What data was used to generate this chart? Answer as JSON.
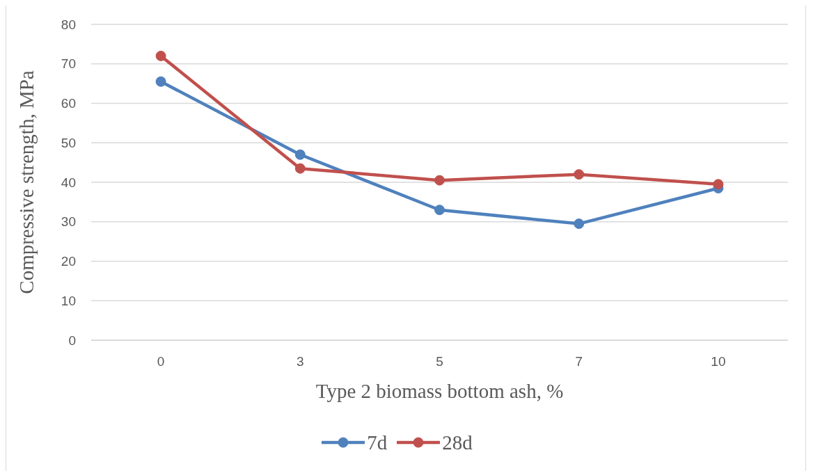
{
  "chart_data": {
    "type": "line",
    "xlabel": "Type 2 biomass bottom ash, %",
    "ylabel": "Compressive strength, MPa",
    "categories": [
      "0",
      "3",
      "5",
      "7",
      "10"
    ],
    "series": [
      {
        "name": "7d",
        "color": "#4f81bd",
        "values": [
          65.5,
          47,
          33,
          29.5,
          38.5
        ]
      },
      {
        "name": "28d",
        "color": "#c0504d",
        "values": [
          72,
          43.5,
          40.5,
          42,
          39.5
        ]
      }
    ],
    "ylim": [
      0,
      80
    ],
    "yticks": [
      0,
      10,
      20,
      30,
      40,
      50,
      60,
      70,
      80
    ],
    "grid": "y",
    "legend": "bottom",
    "marker": "circle",
    "line_style": "solid"
  }
}
